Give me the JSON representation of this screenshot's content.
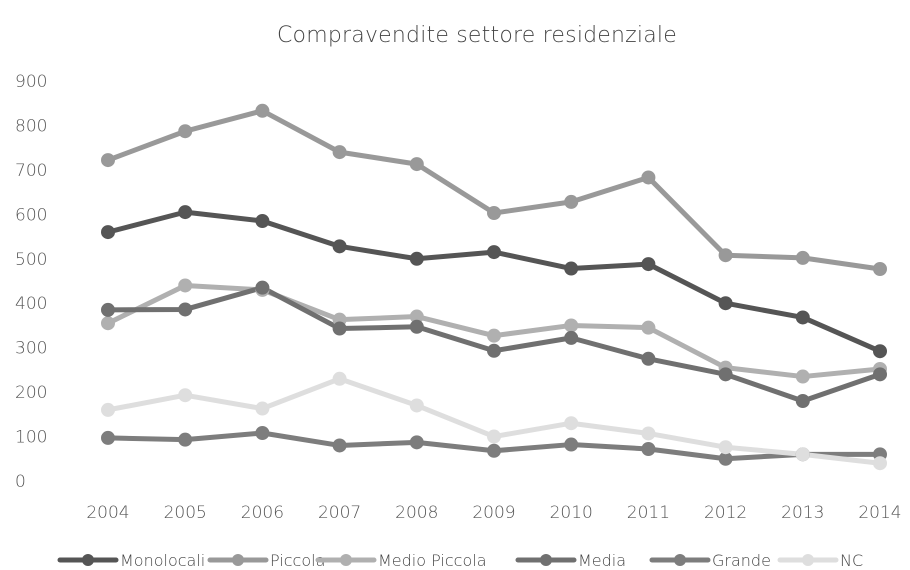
{
  "chart_data": {
    "type": "line",
    "title": "Compravendite settore residenziale",
    "xlabel": "",
    "ylabel": "",
    "categories": [
      "2004",
      "2005",
      "2006",
      "2007",
      "2008",
      "2009",
      "2010",
      "2011",
      "2012",
      "2013",
      "2014"
    ],
    "ylim": [
      0,
      900
    ],
    "yticks": [
      0,
      100,
      200,
      300,
      400,
      500,
      600,
      700,
      800,
      900
    ],
    "grid": false,
    "legend_position": "bottom",
    "series": [
      {
        "name": "Monolocali",
        "color": "#555555",
        "values": [
          560,
          605,
          585,
          528,
          500,
          515,
          478,
          488,
          400,
          368,
          292
        ]
      },
      {
        "name": "Piccola",
        "color": "#999999",
        "values": [
          722,
          787,
          833,
          740,
          713,
          603,
          628,
          683,
          508,
          502,
          477
        ]
      },
      {
        "name": "Medio Piccola",
        "color": "#b0b0b0",
        "values": [
          355,
          440,
          430,
          363,
          370,
          327,
          350,
          345,
          255,
          235,
          252
        ]
      },
      {
        "name": "Media",
        "color": "#707070",
        "values": [
          385,
          386,
          435,
          343,
          347,
          293,
          322,
          275,
          240,
          180,
          240
        ]
      },
      {
        "name": "Grande",
        "color": "#7d7d7d",
        "values": [
          97,
          93,
          108,
          80,
          87,
          68,
          82,
          72,
          50,
          60,
          60
        ]
      },
      {
        "name": "NC",
        "color": "#dedede",
        "values": [
          160,
          193,
          163,
          230,
          170,
          100,
          130,
          107,
          76,
          60,
          40
        ]
      }
    ]
  }
}
